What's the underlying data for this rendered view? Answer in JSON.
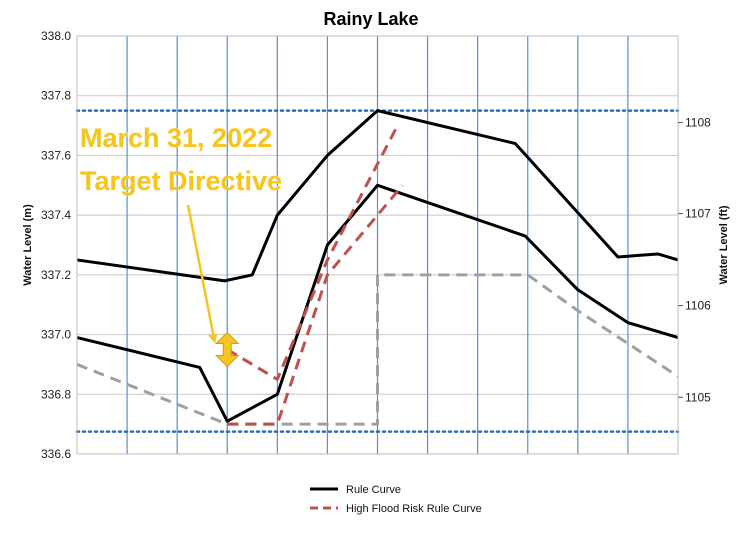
{
  "chart_data": {
    "type": "line",
    "title": "Rainy Lake",
    "ylabel": "Water Level (m)",
    "y2label": "Water Level (ft)",
    "ylim": [
      336.6,
      338.0
    ],
    "yticks": [
      "336.6",
      "336.8",
      "337.0",
      "337.2",
      "337.4",
      "337.6",
      "337.8",
      "338.0"
    ],
    "y2ticks": [
      {
        "label": "1105",
        "value": 336.79
      },
      {
        "label": "1106",
        "value": 337.097
      },
      {
        "label": "1107",
        "value": 337.405
      },
      {
        "label": "1108",
        "value": 337.71
      }
    ],
    "xlim": [
      0,
      12
    ],
    "x_gridlines": [
      1,
      2,
      3,
      4,
      5,
      6,
      7,
      8,
      9,
      10,
      11
    ],
    "hlines": [
      337.75,
      336.675
    ],
    "grid": true,
    "legend_position": "bottom",
    "series": [
      {
        "name": "Rule Curve",
        "style": "solid",
        "color": "#000000",
        "x": [
          0,
          2.95,
          3.5,
          4.0,
          5.0,
          6.0,
          8.75,
          10.8,
          11.6,
          12.0
        ],
        "y": [
          337.25,
          337.18,
          337.2,
          337.4,
          337.6,
          337.75,
          337.64,
          337.26,
          337.27,
          337.25
        ]
      },
      {
        "name": "Rule Curve",
        "style": "solid",
        "color": "#000000",
        "x": [
          0,
          2.45,
          3.0,
          4.0,
          5.0,
          6.0,
          8.95,
          10.0,
          11.0,
          12.0
        ],
        "y": [
          336.99,
          336.89,
          336.71,
          336.8,
          337.3,
          337.5,
          337.33,
          337.15,
          337.04,
          336.99
        ]
      },
      {
        "name": "",
        "style": "dashed",
        "color": "#a0a0a0",
        "x": [
          0,
          3.0,
          6.0,
          6.0,
          9.0,
          10.0,
          11.0,
          12.0
        ],
        "y": [
          336.9,
          336.7,
          336.7,
          337.2,
          337.2,
          337.08,
          336.97,
          336.86
        ]
      },
      {
        "name": "High Flood Risk Rule Curve",
        "style": "dashed",
        "color": "#c0504d",
        "x": [
          3.0,
          4.0,
          5.0,
          6.4
        ],
        "y": [
          336.95,
          336.85,
          337.25,
          337.7
        ]
      },
      {
        "name": "High Flood Risk Rule Curve",
        "style": "dashed",
        "color": "#c0504d",
        "x": [
          3.0,
          4.0,
          5.0,
          6.5
        ],
        "y": [
          336.7,
          336.7,
          337.2,
          337.5
        ]
      }
    ],
    "legend": [
      {
        "label": "Rule Curve",
        "style": "solid",
        "color": "#000000"
      },
      {
        "label": "High Flood Risk Rule Curve",
        "style": "dashed",
        "color": "#c0504d"
      }
    ],
    "annotation": {
      "lines": [
        "March 31, 2022",
        "Target Directive"
      ],
      "color": "#f7c51f",
      "marker_x": 3.0,
      "marker_y": 336.95,
      "marker": "double-arrow"
    }
  }
}
